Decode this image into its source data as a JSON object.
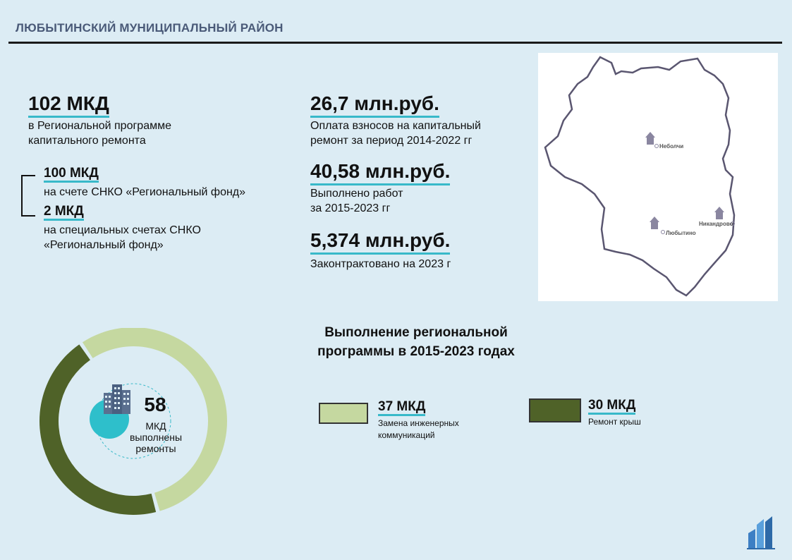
{
  "header": {
    "title": "ЛЮБЫТИНСКИЙ МУНИЦИПАЛЬНЫЙ РАЙОН"
  },
  "stats": {
    "total": {
      "value": "102 МКД",
      "desc": "в Региональной программе\nкапитального ремонта"
    },
    "regional_fund": {
      "value": "100 МКД",
      "desc": "на счете СНКО «Региональный фонд»"
    },
    "special_accounts": {
      "value": "2 МКД",
      "desc": "на специальных счетах СНКО\n«Региональный фонд»"
    },
    "payments": {
      "value": "26,7 млн.руб.",
      "desc": "Оплата взносов на капитальный\nремонт за период 2014-2022 гг"
    },
    "works_done": {
      "value": "40,58 млн.руб.",
      "desc": "Выполнено работ\nза 2015-2023 гг"
    },
    "contracted": {
      "value": "5,374 млн.руб.",
      "desc": "Законтрактовано на 2023 г"
    }
  },
  "map": {
    "places": [
      "Неболчи",
      "Любытино",
      "Никандрово"
    ]
  },
  "chart_data": {
    "type": "pie",
    "title": "Выполнение региональной\nпрограммы в 2015-2023  годах",
    "total": 58,
    "total_unit": "МКД",
    "total_caption": "МКД\nвыполнены\nремонты",
    "series": [
      {
        "value": 37,
        "value_label": "37 МКД",
        "label": "Замена инженерных\nкоммуникаций",
        "color": "#c5d8a0"
      },
      {
        "value": 30,
        "value_label": "30 МКД",
        "label": "Ремонт крыш",
        "color": "#4f6228"
      }
    ]
  },
  "colors": {
    "background": "#dcecf4",
    "accent_underline": "#38b9c9",
    "header_text": "#4a5a78",
    "map_outline": "#5a5670"
  }
}
